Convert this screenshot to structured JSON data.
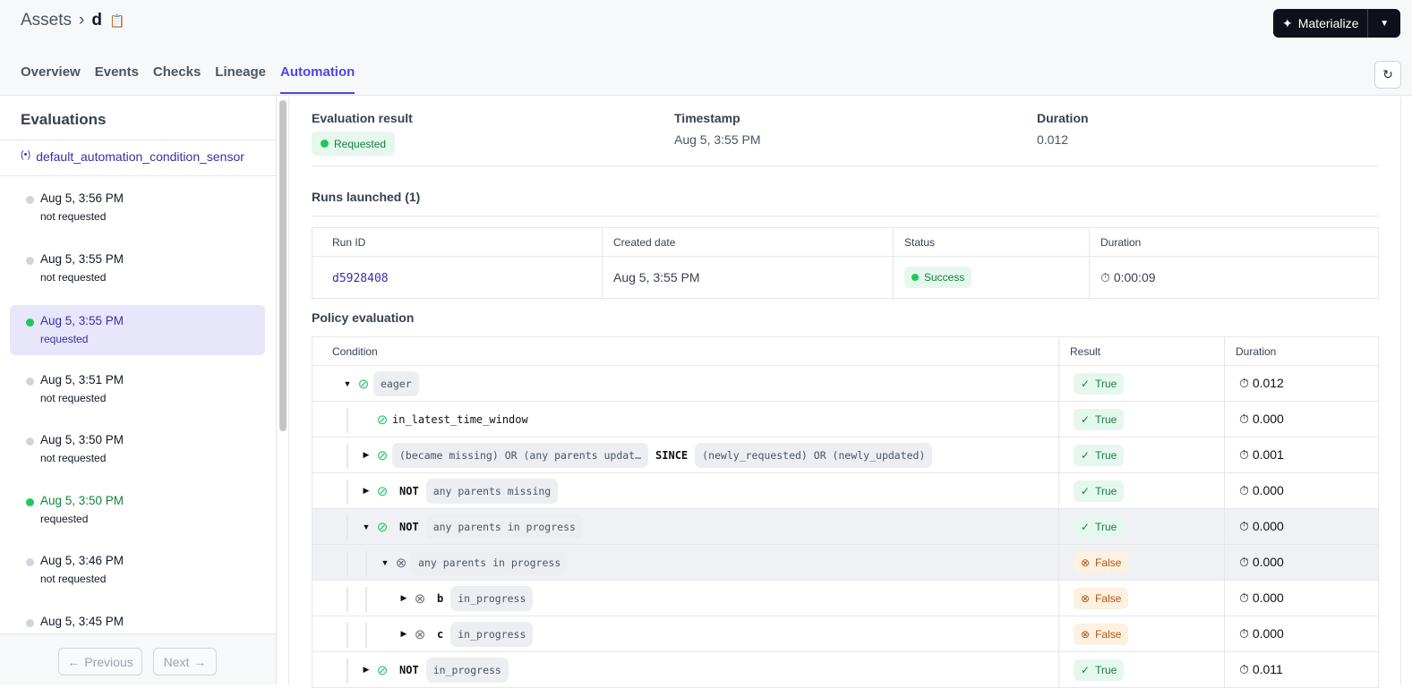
{
  "breadcrumb": {
    "root": "Assets",
    "current": "d"
  },
  "tabs": [
    "Overview",
    "Events",
    "Checks",
    "Lineage",
    "Automation"
  ],
  "active_tab": "Automation",
  "materialize_label": "Materialize",
  "sidebar": {
    "title": "Evaluations",
    "sensor": "default_automation_condition_sensor",
    "items": [
      {
        "time": "Aug 5, 3:56 PM",
        "status": "not requested"
      },
      {
        "time": "Aug 5, 3:55 PM",
        "status": "not requested"
      },
      {
        "time": "Aug 5, 3:55 PM",
        "status": "requested",
        "selected": true
      },
      {
        "time": "Aug 5, 3:51 PM",
        "status": "not requested"
      },
      {
        "time": "Aug 5, 3:50 PM",
        "status": "not requested"
      },
      {
        "time": "Aug 5, 3:50 PM",
        "status": "requested"
      },
      {
        "time": "Aug 5, 3:46 PM",
        "status": "not requested"
      },
      {
        "time": "Aug 5, 3:45 PM",
        "status": ""
      }
    ],
    "previous": "Previous",
    "next": "Next"
  },
  "summary": {
    "result_label": "Evaluation result",
    "result": "Requested",
    "timestamp_label": "Timestamp",
    "timestamp": "Aug 5, 3:55 PM",
    "duration_label": "Duration",
    "duration": "0.012"
  },
  "runs": {
    "title": "Runs launched (1)",
    "headers": [
      "Run ID",
      "Created date",
      "Status",
      "Duration"
    ],
    "rows": [
      {
        "id": "d5928408",
        "created": "Aug 5, 3:55 PM",
        "status": "Success",
        "duration": "0:00:09"
      }
    ]
  },
  "policy": {
    "title": "Policy evaluation",
    "headers": [
      "Condition",
      "Result",
      "Duration"
    ],
    "rows": [
      {
        "level": 0,
        "caret": "down",
        "ok": true,
        "parts": [
          {
            "chip": "eager"
          }
        ],
        "result": "True",
        "duration": "0.012"
      },
      {
        "level": 1,
        "caret": "",
        "ok": true,
        "parts": [
          {
            "mono": "in_latest_time_window"
          }
        ],
        "result": "True",
        "duration": "0.000"
      },
      {
        "level": 1,
        "caret": "right",
        "ok": true,
        "parts": [
          {
            "chip": "(became missing) OR (any parents updat…"
          },
          {
            "kw": "SINCE"
          },
          {
            "chip": "(newly_requested) OR (newly_updated)"
          }
        ],
        "result": "True",
        "duration": "0.001"
      },
      {
        "level": 1,
        "caret": "right",
        "ok": true,
        "parts": [
          {
            "kw": "NOT"
          },
          {
            "chip": "any parents missing"
          }
        ],
        "result": "True",
        "duration": "0.000"
      },
      {
        "level": 1,
        "caret": "down",
        "ok": true,
        "parts": [
          {
            "kw": "NOT"
          },
          {
            "chip": "any parents in progress"
          }
        ],
        "result": "True",
        "duration": "0.000",
        "hl": true
      },
      {
        "level": 2,
        "caret": "down",
        "ok": false,
        "parts": [
          {
            "chip": "any parents in progress"
          }
        ],
        "result": "False",
        "duration": "0.000",
        "hl": true
      },
      {
        "level": 3,
        "caret": "right",
        "ok": false,
        "parts": [
          {
            "kw": "b"
          },
          {
            "chip": "in_progress"
          }
        ],
        "result": "False",
        "duration": "0.000"
      },
      {
        "level": 3,
        "caret": "right",
        "ok": false,
        "parts": [
          {
            "kw": "c"
          },
          {
            "chip": "in_progress"
          }
        ],
        "result": "False",
        "duration": "0.000"
      },
      {
        "level": 1,
        "caret": "right",
        "ok": true,
        "parts": [
          {
            "kw": "NOT"
          },
          {
            "chip": "in_progress"
          }
        ],
        "result": "True",
        "duration": "0.011"
      }
    ]
  },
  "colors": {
    "accent": "#4f46e5",
    "success": "#22c55e",
    "false": "#b45309"
  }
}
